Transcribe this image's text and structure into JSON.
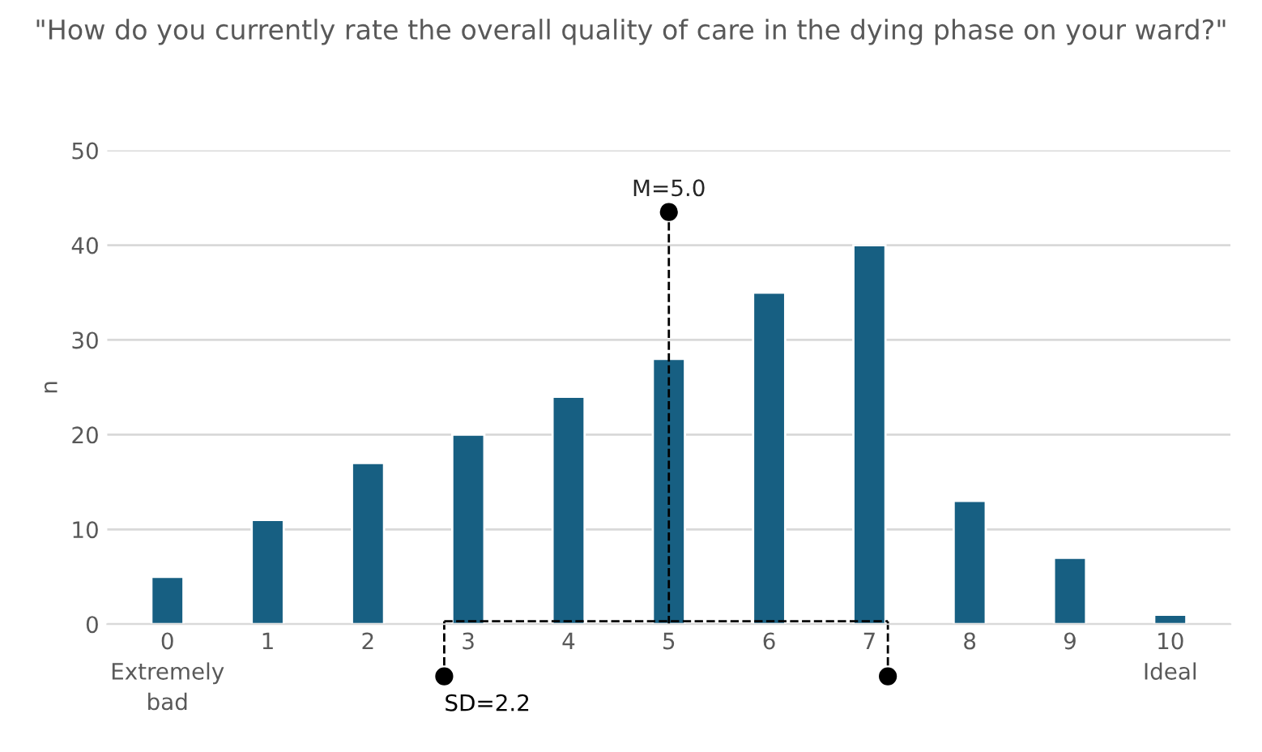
{
  "chart_data": {
    "type": "bar",
    "title": "\"How do you currently rate the overall quality of care in the dying phase on your ward?\"",
    "ylabel": "n",
    "categories": [
      "0\nExtremely\nbad",
      "1",
      "2",
      "3",
      "4",
      "5",
      "6",
      "7",
      "8",
      "9",
      "10\nIdeal"
    ],
    "values": [
      5,
      11,
      17,
      20,
      24,
      28,
      35,
      40,
      13,
      7,
      1
    ],
    "color": "#175f82",
    "ylim": [
      0,
      50
    ],
    "yticks": [
      0,
      10,
      20,
      30,
      40,
      50
    ],
    "grid": "y",
    "ref_lines": [
      {
        "axis": "x",
        "value": "5",
        "color": "#000000",
        "line_style": "dashed"
      }
    ],
    "annotations": [
      {
        "text": "M=5.0",
        "x": "5",
        "y": 43.5
      },
      "SD=2.2"
    ]
  }
}
